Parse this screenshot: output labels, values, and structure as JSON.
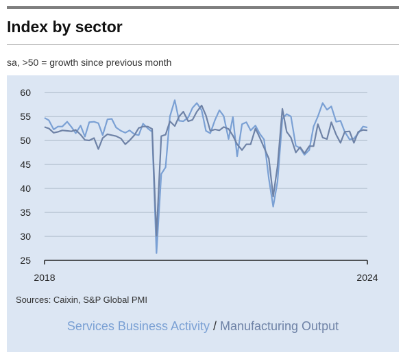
{
  "header": {
    "title": "Index by sector",
    "subtitle": "sa, >50 = growth since previous month"
  },
  "footer": {
    "source": "Sources: Caixin, S&P Global PMI",
    "legend_separator": " / "
  },
  "colors": {
    "services": "#7aa0d4",
    "manufacturing": "#6e82a6",
    "grid": "#a8b5c6",
    "panel": "#dce6f3"
  },
  "chart_data": {
    "type": "line",
    "title": "Index by sector",
    "subtitle": "sa, >50 = growth since previous month",
    "xlabel": "",
    "ylabel": "",
    "ylim": [
      25,
      60
    ],
    "yticks": [
      25,
      30,
      35,
      40,
      45,
      50,
      55,
      60
    ],
    "xlim": [
      2018,
      2024
    ],
    "xtick_labels": [
      "2018",
      "2024"
    ],
    "grid": true,
    "legend_position": "bottom",
    "series": [
      {
        "name": "Services Business Activity",
        "color": "#7aa0d4",
        "x": [
          2018.0,
          2018.08,
          2018.17,
          2018.25,
          2018.33,
          2018.42,
          2018.5,
          2018.58,
          2018.67,
          2018.75,
          2018.83,
          2018.92,
          2019.0,
          2019.08,
          2019.17,
          2019.25,
          2019.33,
          2019.42,
          2019.5,
          2019.58,
          2019.67,
          2019.75,
          2019.83,
          2019.92,
          2020.0,
          2020.08,
          2020.17,
          2020.25,
          2020.33,
          2020.42,
          2020.5,
          2020.58,
          2020.67,
          2020.75,
          2020.83,
          2020.92,
          2021.0,
          2021.08,
          2021.17,
          2021.25,
          2021.33,
          2021.42,
          2021.5,
          2021.58,
          2021.67,
          2021.75,
          2021.83,
          2021.92,
          2022.0,
          2022.08,
          2022.17,
          2022.25,
          2022.33,
          2022.42,
          2022.5,
          2022.58,
          2022.67,
          2022.75,
          2022.83,
          2022.92,
          2023.0,
          2023.08,
          2023.17,
          2023.25,
          2023.33,
          2023.42,
          2023.5,
          2023.58,
          2023.67,
          2023.75,
          2023.83,
          2023.92,
          2024.0
        ],
        "values": [
          54.7,
          54.2,
          52.3,
          52.9,
          52.9,
          53.9,
          52.8,
          51.5,
          53.1,
          50.8,
          53.8,
          53.9,
          53.6,
          51.1,
          54.4,
          54.5,
          52.7,
          52.0,
          51.6,
          52.1,
          51.3,
          51.1,
          53.5,
          52.5,
          51.8,
          26.5,
          43.0,
          44.4,
          55.0,
          58.4,
          54.1,
          54.0,
          54.8,
          56.8,
          57.8,
          56.3,
          52.0,
          51.5,
          54.3,
          56.3,
          55.1,
          50.3,
          54.9,
          46.7,
          53.4,
          53.8,
          52.1,
          53.1,
          51.4,
          50.2,
          42.0,
          36.2,
          41.4,
          54.5,
          55.5,
          55.0,
          48.9,
          48.4,
          47.0,
          48.0,
          52.9,
          55.0,
          57.8,
          56.4,
          57.1,
          53.9,
          54.1,
          51.8,
          50.2,
          50.4,
          51.5,
          52.9,
          52.7
        ]
      },
      {
        "name": "Manufacturing Output",
        "color": "#6e82a6",
        "x": [
          2018.0,
          2018.08,
          2018.17,
          2018.25,
          2018.33,
          2018.42,
          2018.5,
          2018.58,
          2018.67,
          2018.75,
          2018.83,
          2018.92,
          2019.0,
          2019.08,
          2019.17,
          2019.25,
          2019.33,
          2019.42,
          2019.5,
          2019.58,
          2019.67,
          2019.75,
          2019.83,
          2019.92,
          2020.0,
          2020.08,
          2020.17,
          2020.25,
          2020.33,
          2020.42,
          2020.5,
          2020.58,
          2020.67,
          2020.75,
          2020.83,
          2020.92,
          2021.0,
          2021.08,
          2021.17,
          2021.25,
          2021.33,
          2021.42,
          2021.5,
          2021.58,
          2021.67,
          2021.75,
          2021.83,
          2021.92,
          2022.0,
          2022.08,
          2022.17,
          2022.25,
          2022.33,
          2022.42,
          2022.5,
          2022.58,
          2022.67,
          2022.75,
          2022.83,
          2022.92,
          2023.0,
          2023.08,
          2023.17,
          2023.25,
          2023.33,
          2023.42,
          2023.5,
          2023.58,
          2023.67,
          2023.75,
          2023.83,
          2023.92,
          2024.0
        ],
        "values": [
          52.8,
          52.5,
          51.6,
          51.8,
          52.1,
          52.0,
          51.9,
          52.2,
          51.2,
          50.1,
          50.0,
          50.5,
          48.2,
          50.5,
          51.3,
          51.1,
          50.9,
          50.4,
          49.2,
          50.0,
          51.1,
          52.6,
          52.9,
          52.9,
          52.4,
          30.1,
          50.9,
          51.2,
          54.0,
          53.0,
          55.0,
          56.0,
          54.0,
          54.3,
          56.0,
          57.3,
          55.2,
          52.0,
          52.3,
          52.1,
          52.8,
          52.4,
          51.0,
          49.2,
          48.0,
          49.2,
          49.2,
          52.5,
          50.6,
          48.5,
          46.2,
          38.3,
          44.6,
          56.6,
          51.8,
          50.6,
          47.5,
          48.6,
          47.3,
          48.8,
          48.8,
          53.4,
          50.6,
          50.3,
          53.8,
          51.2,
          49.5,
          51.8,
          51.9,
          49.5,
          51.8,
          52.2,
          52.1
        ]
      }
    ]
  }
}
